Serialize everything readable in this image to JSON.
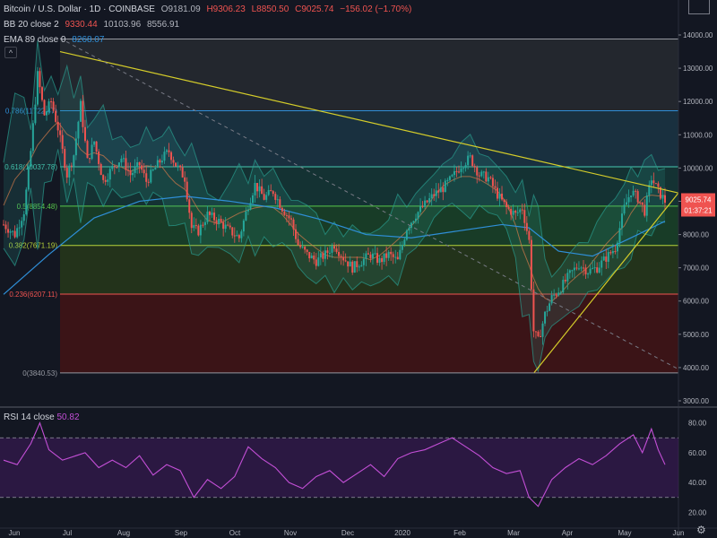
{
  "header": {
    "symbol": "Bitcoin / U.S. Dollar · 1D · COINBASE",
    "o": "O9181.09",
    "h": "H9306.23",
    "l": "L8850.50",
    "c": "C9025.74",
    "chg": "−156.02 (−1.70%)"
  },
  "bb": {
    "label": "BB 20 close 2",
    "v1": "9330.44",
    "v2": "10103.96",
    "v3": "8556.91"
  },
  "ema": {
    "label": "EMA 89 close 0",
    "value": "8268.07"
  },
  "rsi": {
    "label": "RSI 14 close",
    "value": "50.82"
  },
  "price_badge": "9025.74",
  "time_badge": "01:37:21",
  "toggle_glyph": "^",
  "settings_glyph": "⚙",
  "colors": {
    "background": "#131722",
    "up": "#26a69a",
    "down": "#ef5350",
    "trendline": "#d4cc2a",
    "bb": "#2a9d8f",
    "ema": "#2f8fd8",
    "rsi": "#c34fd6"
  },
  "chart_data": {
    "type": "candlestick",
    "price_axis": {
      "ticks": [
        3000,
        4000,
        5000,
        6000,
        7000,
        8000,
        9000,
        10000,
        11000,
        12000,
        13000,
        14000
      ],
      "tick_labels": [
        "3000.00",
        "4000.00",
        "5000.00",
        "6000.00",
        "7000.00",
        "8000.00",
        "9000.00",
        "10000.00",
        "11000.00",
        "12000.00",
        "13000.00",
        "14000.00"
      ],
      "range": [
        2800,
        14600
      ]
    },
    "time_axis": {
      "labels": [
        "Jun",
        "Jul",
        "Aug",
        "Sep",
        "Oct",
        "Nov",
        "Dec",
        "2020",
        "Feb",
        "Mar",
        "Apr",
        "May",
        "Jun"
      ]
    },
    "fib_levels": [
      {
        "label": "0.786(11722.47)",
        "value": 11722.47
      },
      {
        "label": "0.618(10037.78)",
        "value": 10037.78
      },
      {
        "label": "0.5(8854.48)",
        "value": 8854.48
      },
      {
        "label": "0.382(7671.19)",
        "value": 7671.19
      },
      {
        "label": "0.236(6207.11)",
        "value": 6207.11
      },
      {
        "label": "0(3840.53)",
        "value": 3840.53
      }
    ],
    "fib_top": 13880,
    "price_path": [
      [
        0,
        8300
      ],
      [
        5,
        8000
      ],
      [
        9,
        8700
      ],
      [
        12,
        10500
      ],
      [
        15,
        12800
      ],
      [
        18,
        11600
      ],
      [
        21,
        12000
      ],
      [
        24,
        11200
      ],
      [
        28,
        9800
      ],
      [
        31,
        10400
      ],
      [
        34,
        11900
      ],
      [
        37,
        10200
      ],
      [
        40,
        10800
      ],
      [
        44,
        9600
      ],
      [
        48,
        10000
      ],
      [
        52,
        10300
      ],
      [
        56,
        9800
      ],
      [
        60,
        10100
      ],
      [
        63,
        9600
      ],
      [
        66,
        9900
      ],
      [
        70,
        10300
      ],
      [
        73,
        10500
      ],
      [
        76,
        10100
      ],
      [
        80,
        9700
      ],
      [
        83,
        8200
      ],
      [
        86,
        8100
      ],
      [
        90,
        8600
      ],
      [
        95,
        8400
      ],
      [
        100,
        8100
      ],
      [
        104,
        7900
      ],
      [
        108,
        8900
      ],
      [
        111,
        9500
      ],
      [
        115,
        9100
      ],
      [
        119,
        9300
      ],
      [
        123,
        8800
      ],
      [
        127,
        8400
      ],
      [
        130,
        7700
      ],
      [
        134,
        7400
      ],
      [
        138,
        7200
      ],
      [
        142,
        7400
      ],
      [
        146,
        7700
      ],
      [
        150,
        7300
      ],
      [
        154,
        7000
      ],
      [
        158,
        7200
      ],
      [
        162,
        7400
      ],
      [
        166,
        7200
      ],
      [
        170,
        7400
      ],
      [
        174,
        7200
      ],
      [
        178,
        8200
      ],
      [
        182,
        8600
      ],
      [
        186,
        8900
      ],
      [
        190,
        9200
      ],
      [
        194,
        9400
      ],
      [
        198,
        9700
      ],
      [
        202,
        10100
      ],
      [
        206,
        10300
      ],
      [
        210,
        9800
      ],
      [
        214,
        9700
      ],
      [
        218,
        9200
      ],
      [
        222,
        8800
      ],
      [
        226,
        8600
      ],
      [
        229,
        8800
      ],
      [
        232,
        7800
      ],
      [
        234,
        5100
      ],
      [
        236,
        4800
      ],
      [
        239,
        5600
      ],
      [
        242,
        6100
      ],
      [
        246,
        6400
      ],
      [
        250,
        6800
      ],
      [
        254,
        7100
      ],
      [
        258,
        6900
      ],
      [
        262,
        7000
      ],
      [
        266,
        7300
      ],
      [
        270,
        7600
      ],
      [
        274,
        8800
      ],
      [
        277,
        9300
      ],
      [
        280,
        9100
      ],
      [
        283,
        8700
      ],
      [
        286,
        9700
      ],
      [
        289,
        9300
      ],
      [
        292,
        9000
      ]
    ],
    "ema_path": [
      [
        0,
        6200
      ],
      [
        20,
        7400
      ],
      [
        40,
        8500
      ],
      [
        60,
        9000
      ],
      [
        80,
        9150
      ],
      [
        100,
        9000
      ],
      [
        120,
        8800
      ],
      [
        140,
        8450
      ],
      [
        160,
        8000
      ],
      [
        180,
        7900
      ],
      [
        200,
        8100
      ],
      [
        220,
        8300
      ],
      [
        232,
        8200
      ],
      [
        245,
        7500
      ],
      [
        260,
        7350
      ],
      [
        280,
        8000
      ],
      [
        292,
        8400
      ]
    ],
    "rsi": {
      "range": [
        10,
        90
      ],
      "overbought": 70,
      "oversold": 30,
      "tick_labels": [
        "20.00",
        "40.00",
        "60.00",
        "80.00"
      ],
      "ticks": [
        20,
        40,
        60,
        80
      ],
      "values": [
        [
          0,
          55
        ],
        [
          6,
          52
        ],
        [
          12,
          66
        ],
        [
          16,
          80
        ],
        [
          20,
          62
        ],
        [
          26,
          55
        ],
        [
          32,
          58
        ],
        [
          36,
          60
        ],
        [
          42,
          50
        ],
        [
          48,
          55
        ],
        [
          54,
          50
        ],
        [
          60,
          58
        ],
        [
          66,
          45
        ],
        [
          72,
          52
        ],
        [
          78,
          48
        ],
        [
          84,
          30
        ],
        [
          90,
          42
        ],
        [
          96,
          36
        ],
        [
          102,
          44
        ],
        [
          108,
          64
        ],
        [
          114,
          56
        ],
        [
          120,
          50
        ],
        [
          126,
          40
        ],
        [
          132,
          36
        ],
        [
          138,
          44
        ],
        [
          144,
          48
        ],
        [
          150,
          40
        ],
        [
          156,
          46
        ],
        [
          162,
          52
        ],
        [
          168,
          44
        ],
        [
          174,
          56
        ],
        [
          180,
          60
        ],
        [
          186,
          62
        ],
        [
          192,
          66
        ],
        [
          198,
          70
        ],
        [
          204,
          64
        ],
        [
          210,
          58
        ],
        [
          216,
          50
        ],
        [
          222,
          46
        ],
        [
          228,
          48
        ],
        [
          232,
          30
        ],
        [
          236,
          24
        ],
        [
          242,
          42
        ],
        [
          248,
          50
        ],
        [
          254,
          56
        ],
        [
          260,
          52
        ],
        [
          266,
          58
        ],
        [
          272,
          66
        ],
        [
          278,
          72
        ],
        [
          282,
          60
        ],
        [
          286,
          76
        ],
        [
          289,
          62
        ],
        [
          292,
          52
        ]
      ]
    }
  }
}
